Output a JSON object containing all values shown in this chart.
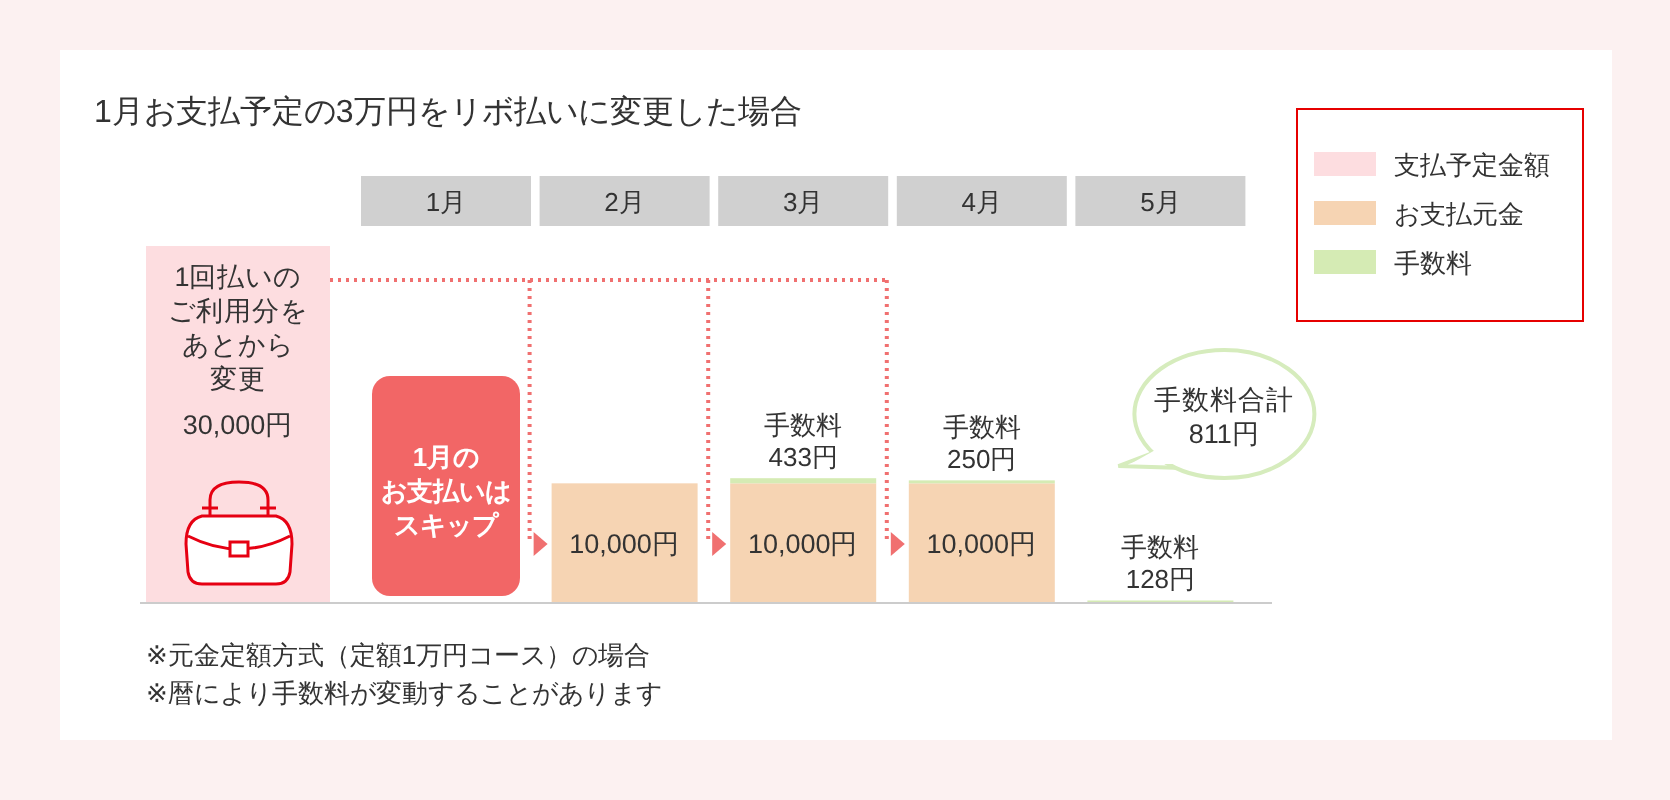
{
  "chart_data": {
    "type": "bar",
    "title": "1月お支払予定の3万円をリボ払いに変更した場合",
    "categories": [
      null,
      "1月",
      "2月",
      "3月",
      "4月",
      "5月"
    ],
    "stacked": true,
    "tick_labels": "x",
    "legend": "top right",
    "series": [
      {
        "name": "支払予定金額",
        "color": "#fddde0",
        "values": [
          30000,
          null,
          null,
          null,
          null,
          null
        ],
        "value_labels": [
          "30,000円",
          null,
          null,
          null,
          null,
          null
        ]
      },
      {
        "name": "お支払元金",
        "color": "#f6d4b3",
        "values": [
          null,
          null,
          10000,
          10000,
          10000,
          null
        ],
        "value_labels": [
          null,
          null,
          "10,000円",
          "10,000円",
          "10,000円",
          null
        ]
      },
      {
        "name": "手数料",
        "color": "#d5ebb4",
        "values": [
          null,
          null,
          null,
          433,
          250,
          128
        ],
        "value_labels": [
          null,
          null,
          null,
          "手数料\n433円",
          "手数料\n250円",
          "手数料\n128円"
        ]
      }
    ],
    "annotations": [
      "1回払いのご利用分をあとから変更",
      "1月のお支払いはスキップ",
      "手数料合計\n811円",
      "※元金定額方式（定額1万円コース）の場合",
      "※暦により手数料が変動することがあります"
    ]
  }
}
